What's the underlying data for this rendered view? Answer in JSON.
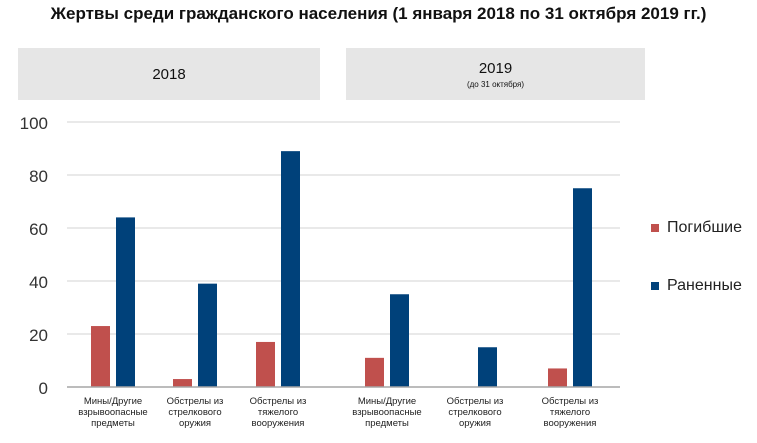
{
  "chart_data": {
    "type": "bar",
    "title": "Жертвы среди гражданского населения (1 января 2018 по 31 октября 2019 гг.)",
    "groups": [
      {
        "label": "2018",
        "sublabel": ""
      },
      {
        "label": "2019",
        "sublabel": "(до 31 октября)"
      }
    ],
    "categories": [
      "Мины/Другие взрывоопасные предметы",
      "Обстрелы из стрелкового оружия",
      "Обстрелы из тяжелого вооружения",
      "Мины/Другие взрывоопасные предметы",
      "Обстрелы из стрелкового оружия",
      "Обстрелы из тяжелого вооружения"
    ],
    "category_lines": [
      [
        "Мины/Другие",
        "взрывоопасные",
        "предметы"
      ],
      [
        "Обстрелы из",
        "стрелкового",
        "оружия"
      ],
      [
        "Обстрелы из",
        "тяжелого",
        "вооружения"
      ],
      [
        "Мины/Другие",
        "взрывоопасные",
        "предметы"
      ],
      [
        "Обстрелы из",
        "стрелкового",
        "оружия"
      ],
      [
        "Обстрелы из",
        "тяжелого",
        "вооружения"
      ]
    ],
    "series": [
      {
        "name": "Погибшие",
        "color": "#c0504d",
        "values": [
          23,
          3,
          17,
          11,
          0,
          7
        ]
      },
      {
        "name": "Раненные",
        "color": "#00417a",
        "values": [
          64,
          39,
          89,
          35,
          15,
          75
        ]
      }
    ],
    "ylim": [
      0,
      100
    ],
    "yticks": [
      0,
      20,
      40,
      60,
      80,
      100
    ],
    "grid": true,
    "legend": "right",
    "xlabel": "",
    "ylabel": ""
  }
}
